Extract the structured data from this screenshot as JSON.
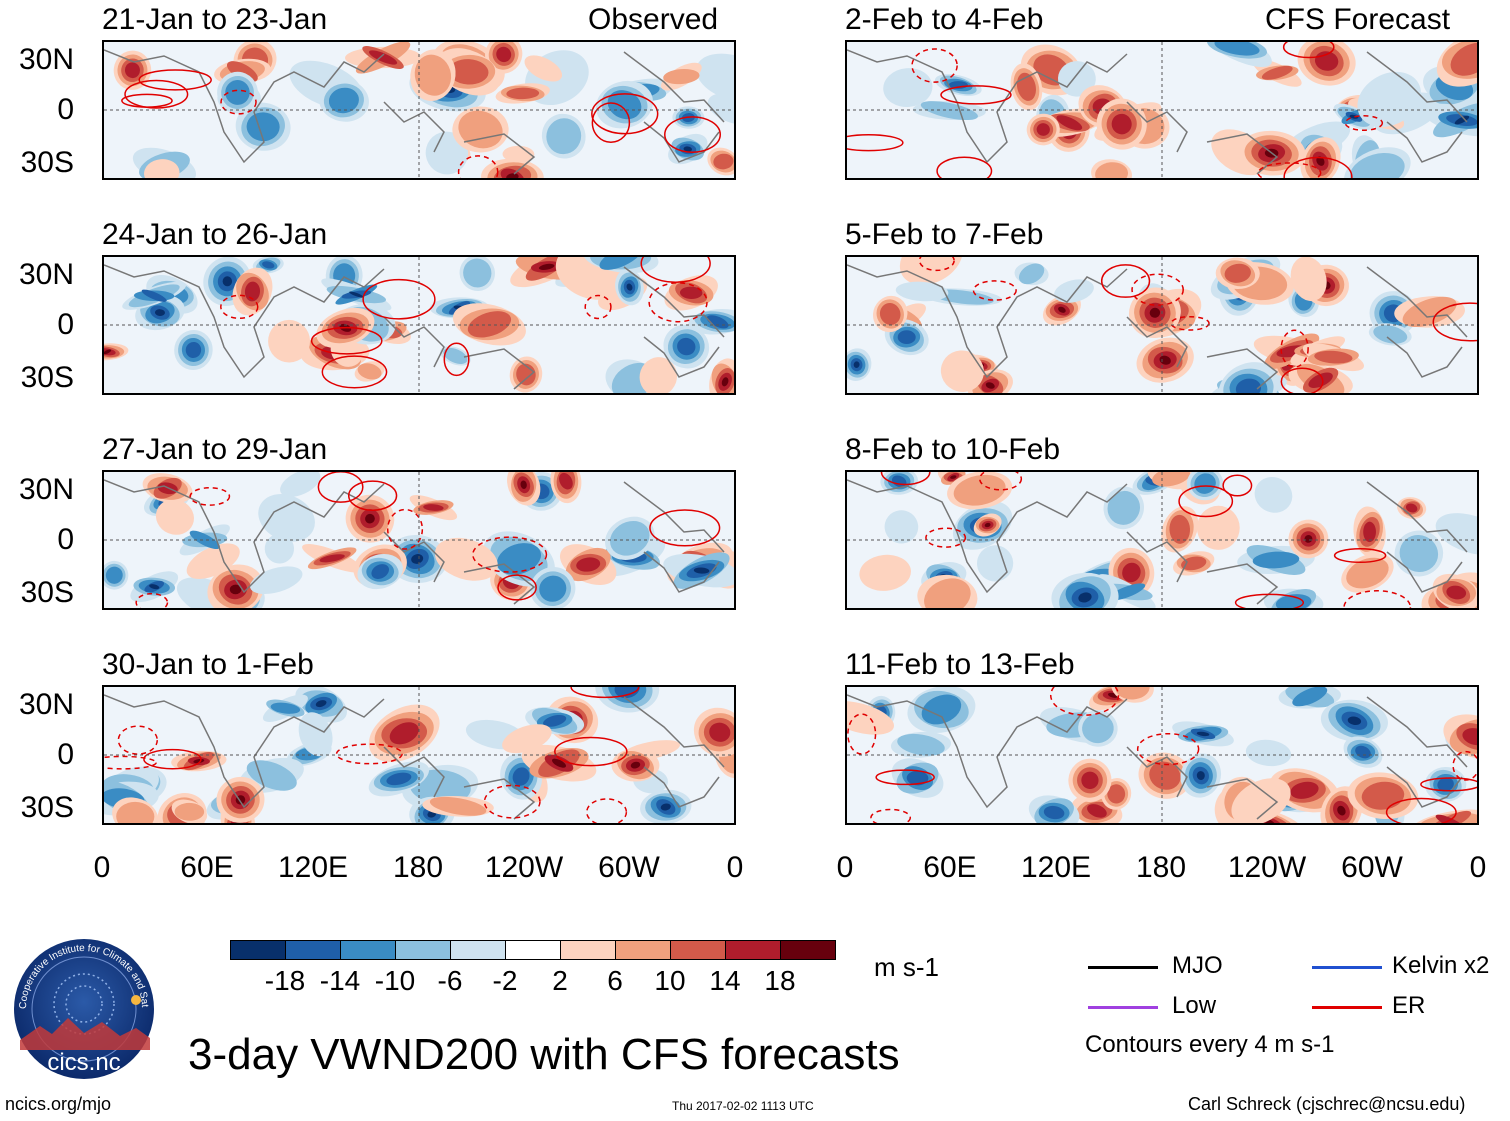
{
  "panels_left": [
    {
      "title": "21-Jan to 23-Jan",
      "tag": "Observed"
    },
    {
      "title": "24-Jan to 26-Jan",
      "tag": ""
    },
    {
      "title": "27-Jan to 29-Jan",
      "tag": ""
    },
    {
      "title": "30-Jan to 1-Feb",
      "tag": ""
    }
  ],
  "panels_right": [
    {
      "title": "2-Feb to 4-Feb",
      "tag": "CFS Forecast"
    },
    {
      "title": "5-Feb to 7-Feb",
      "tag": ""
    },
    {
      "title": "8-Feb to 10-Feb",
      "tag": ""
    },
    {
      "title": "11-Feb to 13-Feb",
      "tag": ""
    }
  ],
  "lat_labels": [
    "30N",
    "0",
    "30S"
  ],
  "lon_labels": [
    "0",
    "60E",
    "120E",
    "180",
    "120W",
    "60W",
    "0"
  ],
  "colorbar": {
    "ticks": [
      "-18",
      "-14",
      "-10",
      "-6",
      "-2",
      "2",
      "6",
      "10",
      "14",
      "18"
    ],
    "colors": [
      "#08306b",
      "#1f5fa8",
      "#3a8cc4",
      "#8cc0de",
      "#cfe3f0",
      "#ffffff",
      "#fdd3bf",
      "#f0a07e",
      "#d35a4a",
      "#b01d2c",
      "#67000d"
    ],
    "units": "m s-1"
  },
  "legend": {
    "items": [
      {
        "label": "MJO",
        "color": "#000000"
      },
      {
        "label": "Kelvin x2",
        "color": "#2050d0"
      },
      {
        "label": "Low",
        "color": "#a040e0"
      },
      {
        "label": "ER",
        "color": "#e00000"
      }
    ],
    "contour_note": "Contours every 4 m s-1"
  },
  "logo": {
    "text": "cics.nc",
    "ring_text": "Cooperative Institute for Climate and Satellites"
  },
  "main_title": "3-day VWND200 with CFS forecasts",
  "footer": {
    "left": "ncics.org/mjo",
    "center": "Thu 2017-02-02 1113 UTC",
    "right": "Carl Schreck (cjschrec@ncsu.edu)"
  },
  "icons": {
    "logo": "cics-logo-icon"
  }
}
